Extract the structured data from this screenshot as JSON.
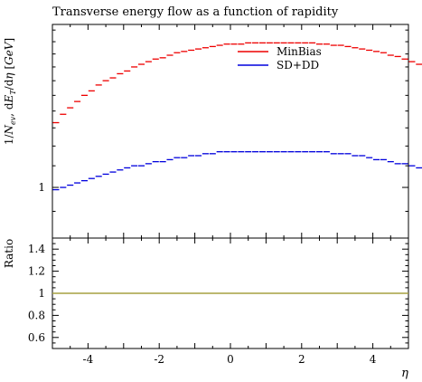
{
  "chart_data": {
    "type": "line",
    "title": "Transverse energy flow as a function of rapidity",
    "xlabel": "η",
    "ylabel": "1/N_ev, dE_T/dη [GeV]",
    "ratio_ylabel": "Ratio",
    "xlim": [
      -5,
      5
    ],
    "main_ylim": [
      0.8,
      2.05
    ],
    "main_yticks": [
      {
        "value": 1,
        "label": "1"
      }
    ],
    "main_log_scale": true,
    "ratio_ylim": [
      0.5,
      1.5
    ],
    "ratio_yticks": [
      {
        "value": 0.6,
        "label": "0.6"
      },
      {
        "value": 0.8,
        "label": "0.8"
      },
      {
        "value": 1.0,
        "label": "1"
      },
      {
        "value": 1.2,
        "label": "1.2"
      },
      {
        "value": 1.4,
        "label": "1.4"
      }
    ],
    "xticks": [
      {
        "value": -4,
        "label": "-4"
      },
      {
        "value": -2,
        "label": "-2"
      },
      {
        "value": 0,
        "label": "0"
      },
      {
        "value": 2,
        "label": "2"
      },
      {
        "value": 4,
        "label": "4"
      }
    ],
    "bin_width": 0.2,
    "legend_position": "top-right",
    "series": [
      {
        "name": "MinBias",
        "color": "#ee0000",
        "values": [
          1.33,
          1.38,
          1.42,
          1.46,
          1.5,
          1.53,
          1.57,
          1.6,
          1.62,
          1.65,
          1.67,
          1.7,
          1.72,
          1.74,
          1.76,
          1.77,
          1.79,
          1.81,
          1.82,
          1.83,
          1.84,
          1.85,
          1.86,
          1.87,
          1.88,
          1.88,
          1.88,
          1.89,
          1.89,
          1.89,
          1.89,
          1.89,
          1.89,
          1.89,
          1.89,
          1.89,
          1.89,
          1.88,
          1.88,
          1.87,
          1.87,
          1.86,
          1.85,
          1.84,
          1.83,
          1.82,
          1.81,
          1.79,
          1.78,
          1.76,
          1.74,
          1.72,
          1.7,
          1.68,
          1.66,
          1.63,
          1.61,
          1.58,
          1.56,
          1.53,
          1.5,
          1.46,
          1.43,
          1.39,
          1.35
        ]
      },
      {
        "name": "SD+DD",
        "color": "#0000dd",
        "values": [
          0.99,
          1.0,
          1.01,
          1.02,
          1.03,
          1.04,
          1.05,
          1.06,
          1.07,
          1.08,
          1.09,
          1.1,
          1.1,
          1.11,
          1.12,
          1.12,
          1.13,
          1.14,
          1.14,
          1.15,
          1.15,
          1.16,
          1.16,
          1.17,
          1.17,
          1.17,
          1.17,
          1.17,
          1.17,
          1.17,
          1.17,
          1.17,
          1.17,
          1.17,
          1.17,
          1.17,
          1.17,
          1.17,
          1.17,
          1.16,
          1.16,
          1.16,
          1.15,
          1.15,
          1.14,
          1.13,
          1.13,
          1.12,
          1.11,
          1.11,
          1.1,
          1.09,
          1.08,
          1.07,
          1.06,
          1.05,
          1.04,
          1.03,
          1.02,
          1.01,
          1.0,
          0.99,
          0.98,
          0.97
        ]
      }
    ],
    "ratio_series": [
      {
        "color": "#a6a040",
        "value": 1.0
      }
    ]
  }
}
